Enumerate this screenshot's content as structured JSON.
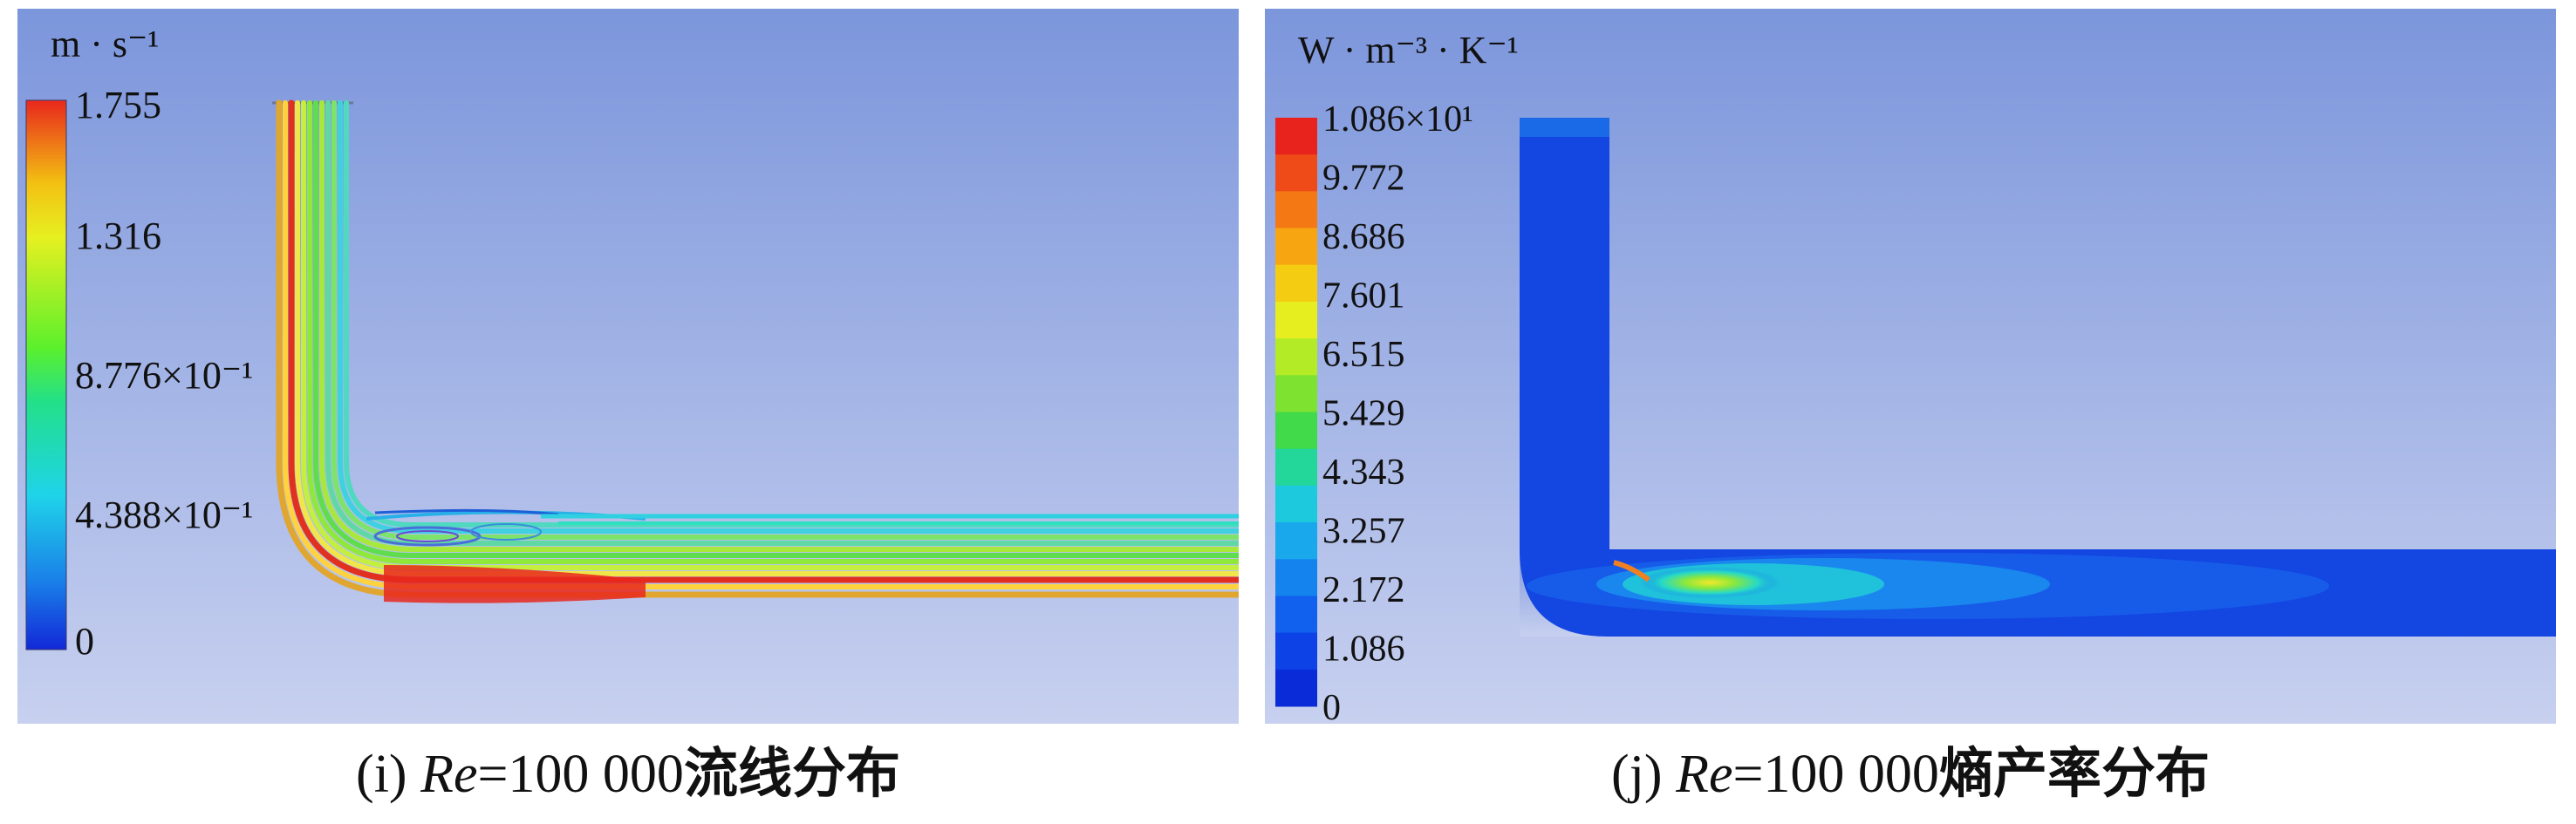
{
  "figures": [
    {
      "id": "i",
      "caption": {
        "prefix": "(i) ",
        "re_symbol": "Re",
        "value": "=100 000",
        "title_cjk": "流线分布"
      },
      "colorbar": {
        "unit": "m · s⁻¹",
        "labels": [
          "1.755",
          "1.316",
          "8.776×10⁻¹",
          "4.388×10⁻¹",
          "0"
        ],
        "stops": [
          "#e8271c",
          "#f3c012",
          "#e6f020",
          "#5cf02c",
          "#22e08a",
          "#1fd3e9",
          "#1a7de8",
          "#1228d8"
        ]
      }
    },
    {
      "id": "j",
      "caption": {
        "prefix": "(j) ",
        "re_symbol": "Re",
        "value": "=100 000",
        "title_cjk": "熵产率分布"
      },
      "colorbar": {
        "unit": "W · m⁻³ · K⁻¹",
        "labels": [
          "1.086×10¹",
          "9.772",
          "8.686",
          "7.601",
          "6.515",
          "5.429",
          "4.343",
          "3.257",
          "2.172",
          "1.086",
          "0"
        ],
        "bands": [
          "#e8231d",
          "#ee4b18",
          "#f47814",
          "#f7a611",
          "#f4cd12",
          "#e6ee1f",
          "#b3ec27",
          "#7de230",
          "#40da4a",
          "#23d79b",
          "#1dc9dc",
          "#19a8ec",
          "#1583ee",
          "#1160ee",
          "#0d42e6",
          "#0a2cd8"
        ]
      }
    }
  ]
}
